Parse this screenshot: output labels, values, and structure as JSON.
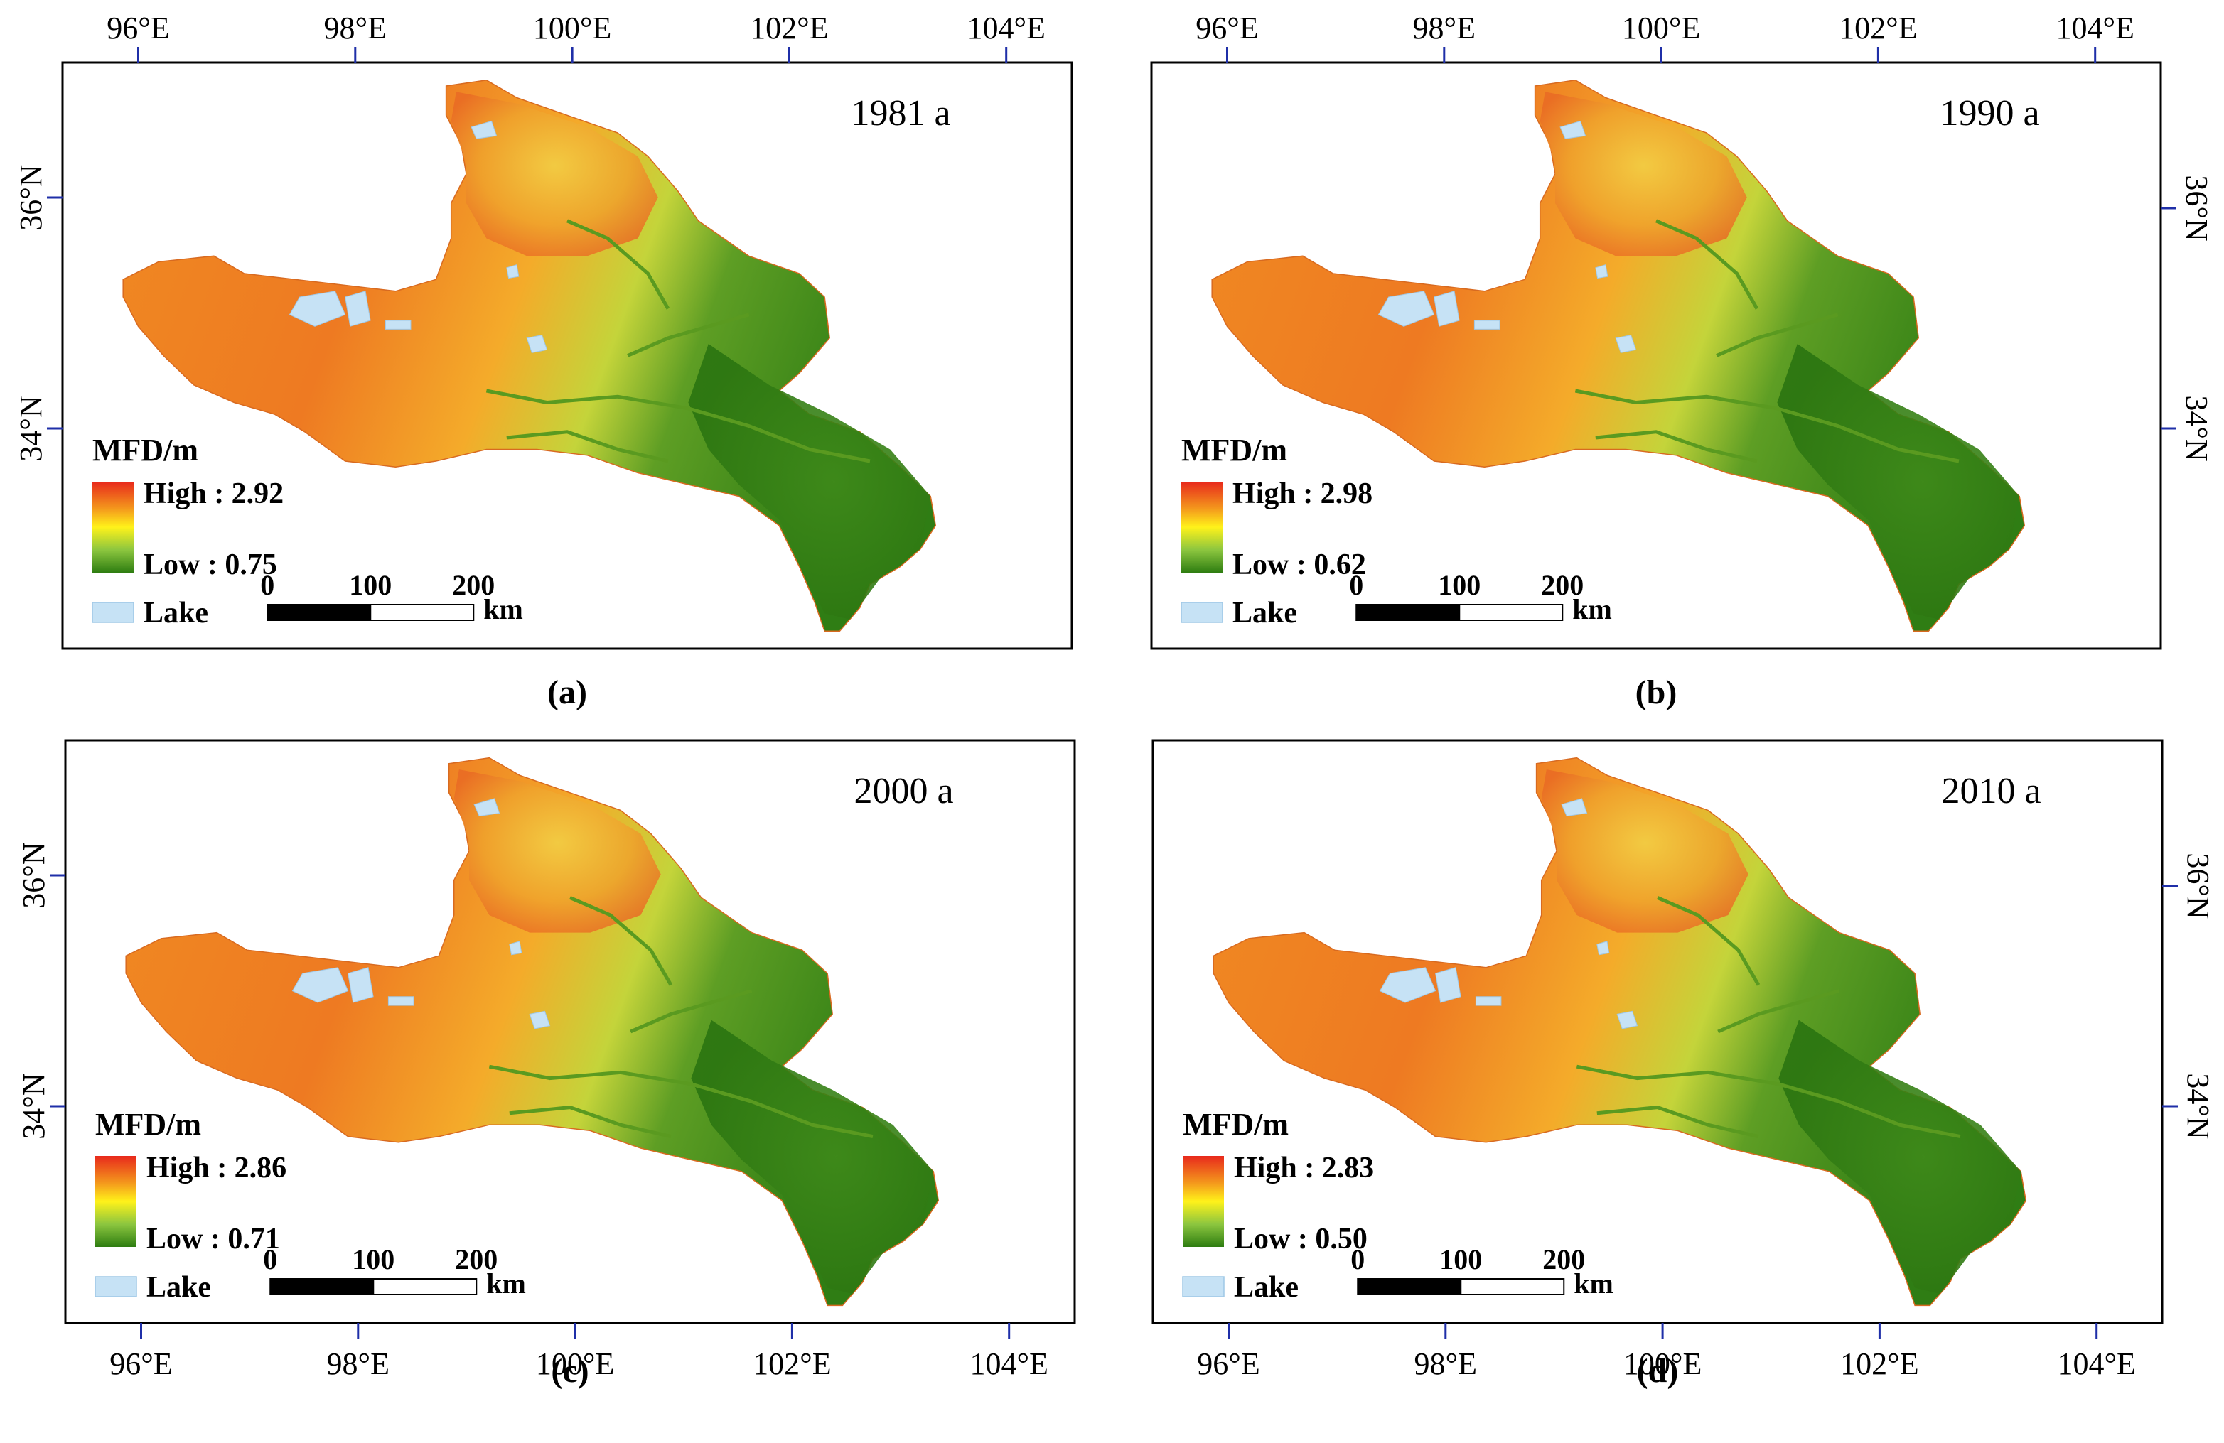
{
  "figure": {
    "panels": [
      {
        "id": "a",
        "caption": "(a)",
        "year": "1981 a",
        "legend_title": "MFD/m",
        "high_label": "High : 2.92",
        "low_label": "Low : 0.75",
        "lake_label": "Lake",
        "scale_ticks": [
          "0",
          "100",
          "200"
        ],
        "scale_unit": "km",
        "lon_ticks_top": [
          "96°E",
          "98°E",
          "100°E",
          "102°E",
          "104°E"
        ],
        "lon_ticks_bottom": [],
        "lat_ticks_left": [
          "36°N",
          "34°N"
        ],
        "lat_ticks_right": []
      },
      {
        "id": "b",
        "caption": "(b)",
        "year": "1990 a",
        "legend_title": "MFD/m",
        "high_label": "High : 2.98",
        "low_label": "Low : 0.62",
        "lake_label": "Lake",
        "scale_ticks": [
          "0",
          "100",
          "200"
        ],
        "scale_unit": "km",
        "lon_ticks_top": [
          "96°E",
          "98°E",
          "100°E",
          "102°E",
          "104°E"
        ],
        "lon_ticks_bottom": [],
        "lat_ticks_left": [],
        "lat_ticks_right": [
          "36°N",
          "34°N"
        ]
      },
      {
        "id": "c",
        "caption": "(c)",
        "year": "2000 a",
        "legend_title": "MFD/m",
        "high_label": "High : 2.86",
        "low_label": "Low : 0.71",
        "lake_label": "Lake",
        "scale_ticks": [
          "0",
          "100",
          "200"
        ],
        "scale_unit": "km",
        "lon_ticks_top": [],
        "lon_ticks_bottom": [
          "96°E",
          "98°E",
          "100°E",
          "102°E",
          "104°E"
        ],
        "lat_ticks_left": [
          "36°N",
          "34°N"
        ],
        "lat_ticks_right": []
      },
      {
        "id": "d",
        "caption": "(d)",
        "year": "2010 a",
        "legend_title": "MFD/m",
        "high_label": "High : 2.83",
        "low_label": "Low : 0.50",
        "lake_label": "Lake",
        "scale_ticks": [
          "0",
          "100",
          "200"
        ],
        "scale_unit": "km",
        "lon_ticks_top": [],
        "lon_ticks_bottom": [
          "96°E",
          "98°E",
          "100°E",
          "102°E",
          "104°E"
        ],
        "lat_ticks_left": [],
        "lat_ticks_right": [
          "36°N",
          "34°N"
        ]
      }
    ],
    "colors": {
      "high": "#e8291c",
      "mid_high": "#f49a1c",
      "mid": "#fff21a",
      "mid_low": "#8cc63f",
      "low": "#2e7d11",
      "lake": "#c6e2f5",
      "tick_marks": "#1f2fa8",
      "frame": "#000000"
    }
  }
}
